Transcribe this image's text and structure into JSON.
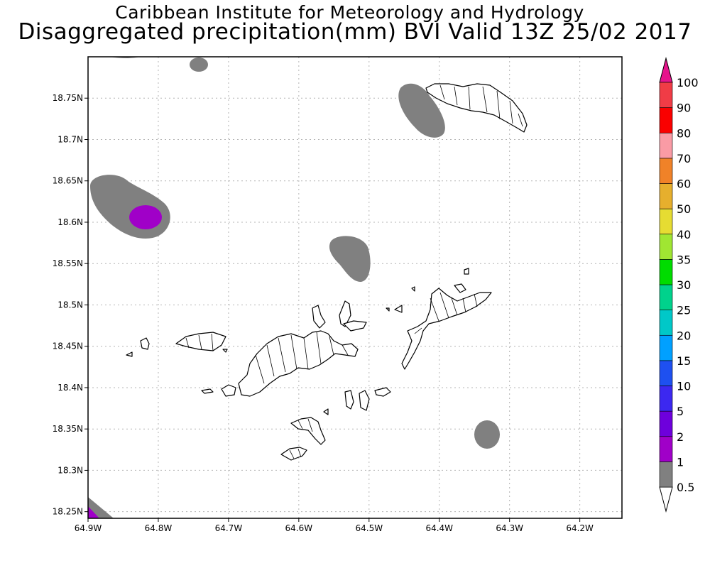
{
  "title_line1": "Caribbean Institute for Meteorology and Hydrology",
  "title_line2": "Disaggregated precipitation(mm) BVI Valid 13Z 25/02 2017",
  "axes": {
    "lon_min": -64.9,
    "lon_max": -64.14,
    "lat_min": 18.242,
    "lat_max": 18.8,
    "x_ticks": [
      "64.9W",
      "64.8W",
      "64.7W",
      "64.6W",
      "64.5W",
      "64.4W",
      "64.3W",
      "64.2W"
    ],
    "y_ticks": [
      "18.25N",
      "18.3N",
      "18.35N",
      "18.4N",
      "18.45N",
      "18.5N",
      "18.55N",
      "18.6N",
      "18.65N",
      "18.7N",
      "18.75N"
    ],
    "grid": true
  },
  "legend": {
    "levels": [
      "0.5",
      "1",
      "2",
      "5",
      "10",
      "15",
      "20",
      "25",
      "30",
      "35",
      "40",
      "50",
      "60",
      "70",
      "80",
      "90",
      "100"
    ],
    "colors": [
      "#ffffff",
      "#808080",
      "#a000c8",
      "#6e00dc",
      "#3c28f0",
      "#1e50f0",
      "#00a0ff",
      "#00c8c8",
      "#00d28c",
      "#00dc00",
      "#a0e632",
      "#e6dc32",
      "#e6af2d",
      "#f08228",
      "#fa9ba5",
      "#fa0000",
      "#f03c46",
      "#e6148c"
    ]
  },
  "precip_cells": [
    {
      "name": "cell-north-top",
      "color": "#808080"
    },
    {
      "name": "cell-small-north",
      "color": "#808080"
    },
    {
      "name": "cell-west",
      "color": "#808080"
    },
    {
      "name": "cell-west-core",
      "color": "#a000c8"
    },
    {
      "name": "cell-central",
      "color": "#808080"
    },
    {
      "name": "cell-anegada",
      "color": "#808080"
    },
    {
      "name": "cell-southeast",
      "color": "#808080"
    },
    {
      "name": "cell-southwest-corner",
      "color": "#808080"
    },
    {
      "name": "cell-southwest-core",
      "color": "#a000c8"
    }
  ]
}
